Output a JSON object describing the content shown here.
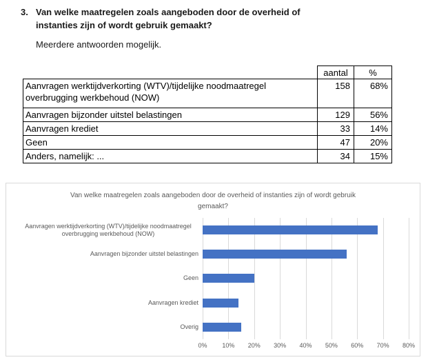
{
  "question": {
    "number": "3.",
    "text": "Van welke maatregelen zoals aangeboden door de overheid of instanties zijn of wordt gebruik gemaakt?",
    "note": "Meerdere antwoorden mogelijk."
  },
  "table": {
    "col_headers": [
      "aantal",
      "%"
    ],
    "rows": [
      {
        "label": "Aanvragen werktijdverkorting (WTV)/tijdelijke noodmaatregel overbrugging werkbehoud (NOW)",
        "aantal": "158",
        "pct": "68%"
      },
      {
        "label": "Aanvragen bijzonder uitstel belastingen",
        "aantal": "129",
        "pct": "56%"
      },
      {
        "label": "Aanvragen krediet",
        "aantal": "33",
        "pct": "14%"
      },
      {
        "label": "Geen",
        "aantal": "47",
        "pct": "20%"
      },
      {
        "label": "Anders, namelijk: ...",
        "aantal": "34",
        "pct": "15%"
      }
    ]
  },
  "chart_data": {
    "type": "bar",
    "orientation": "horizontal",
    "title": "Van welke maatregelen zoals aangeboden door de overheid of instanties zijn of wordt gebruik gemaakt?",
    "title_lines": [
      "Van welke maatregelen zoals aangeboden door de overheid of instanties zijn of wordt gebruik",
      "gemaakt?"
    ],
    "categories": [
      "Aanvragen werktijdverkorting (WTV)/tijdelijke noodmaatregel overbrugging werkbehoud (NOW)",
      "Aanvragen bijzonder uitstel belastingen",
      "Geen",
      "Aanvragen krediet",
      "Overig"
    ],
    "values": [
      68,
      56,
      20,
      14,
      15
    ],
    "unit": "%",
    "x_ticks": [
      "0%",
      "10%",
      "20%",
      "30%",
      "40%",
      "50%",
      "60%",
      "70%",
      "80%"
    ],
    "xlim": [
      0,
      80
    ],
    "grid": true,
    "legend": "none",
    "bar_color": "#4472C4",
    "gridline_color": "#D9D9D9",
    "text_color": "#595959"
  }
}
